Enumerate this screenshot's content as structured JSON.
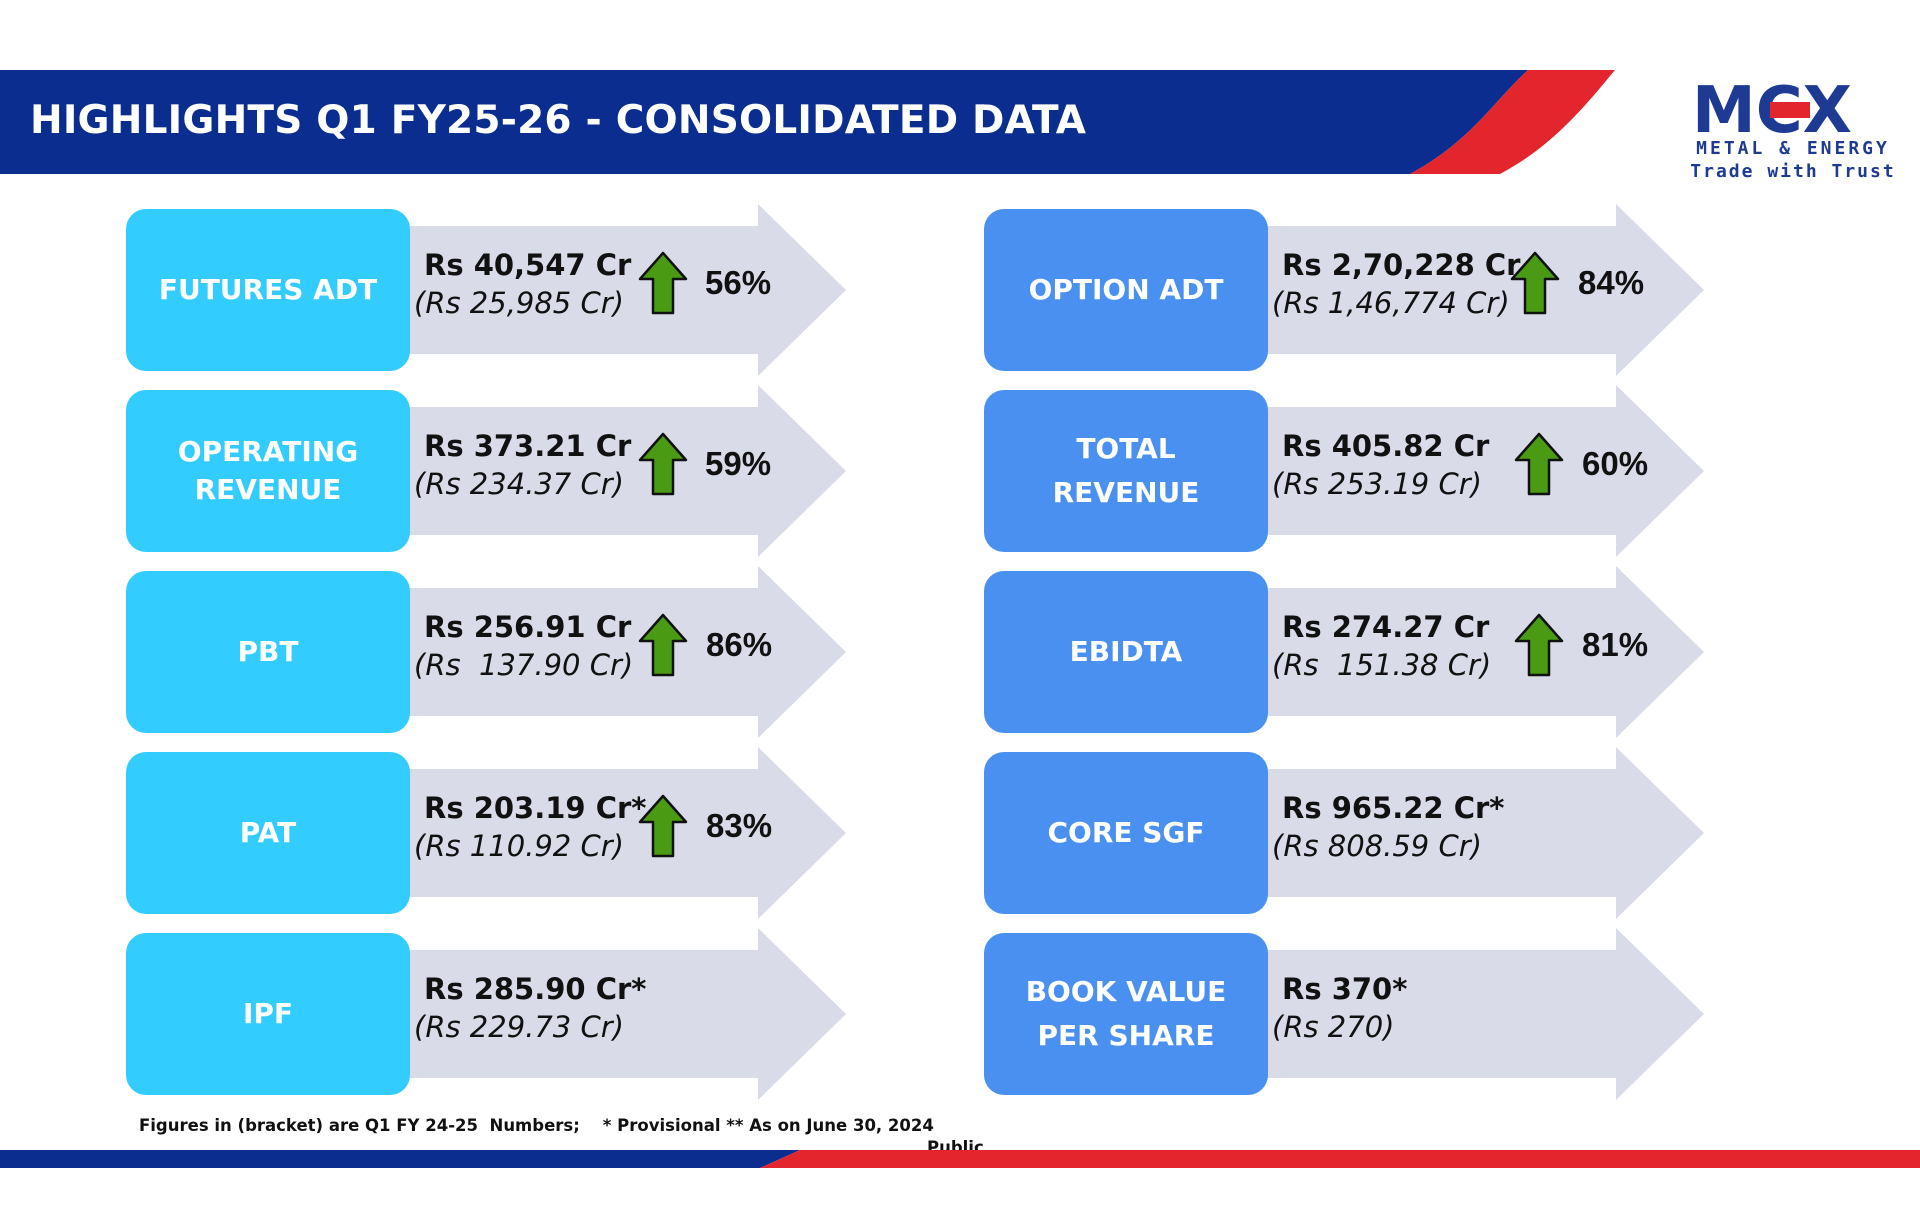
{
  "header": {
    "title": "HIGHLIGHTS Q1 FY25-26 - CONSOLIDATED DATA",
    "bar_color": "#0a2d8f",
    "swoosh_color": "#e3262d"
  },
  "logo": {
    "brand": "MCX",
    "line1": "METAL & ENERGY",
    "line2": "Trade with Trust",
    "brand_color": "#1f3a93",
    "accent_color": "#e3262d"
  },
  "colors": {
    "left_box": "#33ccff",
    "right_box": "#4a90f0",
    "arrow_fill": "#d9dce8",
    "up_arrow_fill": "#4a9a13",
    "up_arrow_stroke": "#111111"
  },
  "cards": [
    {
      "label": [
        "FUTURES ADT"
      ],
      "value": "Rs 40,547 Cr",
      "previous": "(Rs 25,985 Cr)",
      "change": "56%",
      "trend": "up"
    },
    {
      "label": [
        "OPTION ADT"
      ],
      "value": "Rs 2,70,228 Cr",
      "previous": "(Rs 1,46,774 Cr)",
      "change": "84%",
      "trend": "up"
    },
    {
      "label": [
        "OPERATING",
        "REVENUE"
      ],
      "value": "Rs 373.21 Cr",
      "previous": "(Rs 234.37 Cr)",
      "change": "59%",
      "trend": "up"
    },
    {
      "label": [
        "TOTAL",
        "REVENUE"
      ],
      "value": "Rs 405.82 Cr",
      "previous": "(Rs 253.19 Cr)",
      "change": "60%",
      "trend": "up"
    },
    {
      "label": [
        "PBT"
      ],
      "value": "Rs 256.91 Cr",
      "previous": "(Rs  137.90 Cr)",
      "change": "86%",
      "trend": "up"
    },
    {
      "label": [
        "EBIDTA"
      ],
      "value": "Rs 274.27 Cr",
      "previous": "(Rs  151.38 Cr)",
      "change": "81%",
      "trend": "up"
    },
    {
      "label": [
        "PAT"
      ],
      "value": "Rs 203.19 Cr*",
      "previous": "(Rs 110.92 Cr)",
      "change": "83%",
      "trend": "up"
    },
    {
      "label": [
        "CORE SGF"
      ],
      "value": "Rs 965.22 Cr*",
      "previous": "(Rs 808.59 Cr)",
      "change": "",
      "trend": "none"
    },
    {
      "label": [
        "IPF"
      ],
      "value": "Rs 285.90 Cr*",
      "previous": "(Rs 229.73 Cr)",
      "change": "",
      "trend": "none"
    },
    {
      "label": [
        "BOOK VALUE",
        "PER SHARE"
      ],
      "value": "Rs 370*",
      "previous": "(Rs 270)",
      "change": "",
      "trend": "none"
    }
  ],
  "footnote": "Figures in (bracket) are Q1 FY 24-25  Numbers;    * Provisional ** As on June 30, 2024",
  "classification": "Public"
}
